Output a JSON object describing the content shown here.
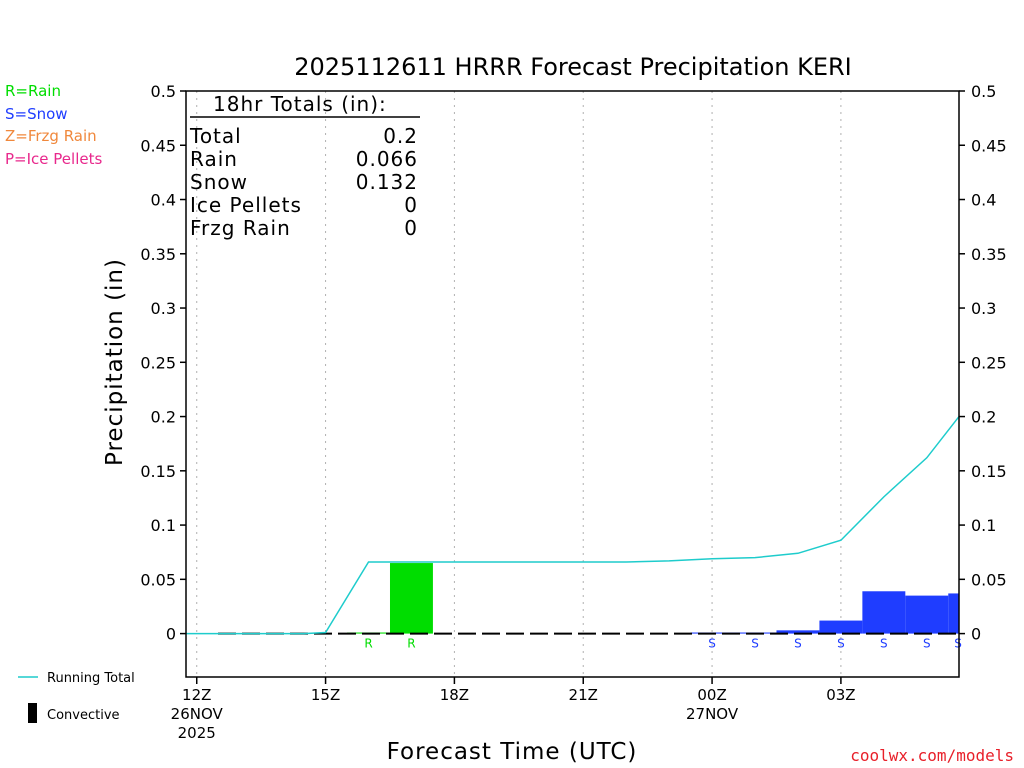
{
  "chart_data": {
    "type": "bar",
    "title": "2025112611 HRRR Forecast Precipitation KERI",
    "xlabel": "Forecast Time (UTC)",
    "ylabel": "Precipitation (in)",
    "ylim": [
      -0.04,
      0.5
    ],
    "yticks": [
      "0.5",
      "0.45",
      "0.4",
      "0.35",
      "0.3",
      "0.25",
      "0.2",
      "0.15",
      "0.1",
      "0.05",
      "0"
    ],
    "ytick_values": [
      0.5,
      0.45,
      0.4,
      0.35,
      0.3,
      0.25,
      0.2,
      0.15,
      0.1,
      0.05,
      0
    ],
    "xlim": [
      -0.25,
      17.75
    ],
    "xticks": [
      {
        "hour": 0,
        "line1": "12Z",
        "line2": "26NOV",
        "line3": "2025"
      },
      {
        "hour": 3,
        "line1": "15Z",
        "line2": "",
        "line3": ""
      },
      {
        "hour": 6,
        "line1": "18Z",
        "line2": "",
        "line3": ""
      },
      {
        "hour": 9,
        "line1": "21Z",
        "line2": "",
        "line3": ""
      },
      {
        "hour": 12,
        "line1": "00Z",
        "line2": "27NOV",
        "line3": ""
      },
      {
        "hour": 15,
        "line1": "03Z",
        "line2": "",
        "line3": ""
      }
    ],
    "hours": [
      0,
      1,
      2,
      3,
      4,
      5,
      6,
      7,
      8,
      9,
      10,
      11,
      12,
      13,
      14,
      15,
      16,
      17,
      18
    ],
    "hourly_precip": [
      0,
      0,
      0,
      0,
      0.001,
      0.065,
      0,
      0,
      0,
      0,
      0,
      0,
      0.001,
      0.001,
      0.003,
      0.012,
      0.039,
      0.035,
      0.037
    ],
    "precip_type": [
      "",
      "",
      "",
      "",
      "R",
      "R",
      "",
      "",
      "",
      "",
      "",
      "",
      "S",
      "S",
      "S",
      "S",
      "S",
      "S",
      "S"
    ],
    "running_total": [
      0,
      0,
      0,
      0,
      0.001,
      0.066,
      0.066,
      0.066,
      0.066,
      0.066,
      0.066,
      0.066,
      0.067,
      0.069,
      0.07,
      0.074,
      0.086,
      0.126,
      0.162,
      0.2
    ],
    "running_total_hours": [
      -0.25,
      0.5,
      1.5,
      2.5,
      3,
      4,
      5,
      6,
      7,
      8,
      9,
      10,
      11,
      12,
      13,
      14,
      15,
      16,
      17,
      17.75
    ],
    "colors": {
      "rain": "#00dd00",
      "snow": "#1f3dff",
      "frzg_rain": "#f0883c",
      "ice_pellets": "#e8288c",
      "running_total": "#1ecccc",
      "convective": "#000000"
    }
  },
  "legend": {
    "rain": "R=Rain",
    "snow": "S=Snow",
    "frzg_rain": "Z=Frzg Rain",
    "ice_pellets": "P=Ice Pellets",
    "running_total": "Running Total",
    "convective": "Convective"
  },
  "totals": {
    "header": "18hr Totals (in):",
    "rows": [
      {
        "label": "Total",
        "value": "0.2"
      },
      {
        "label": "Rain",
        "value": "0.066"
      },
      {
        "label": "Snow",
        "value": "0.132"
      },
      {
        "label": "Ice Pellets",
        "value": "0"
      },
      {
        "label": "Frzg Rain",
        "value": "0"
      }
    ]
  },
  "credit": "coolwx.com/models"
}
